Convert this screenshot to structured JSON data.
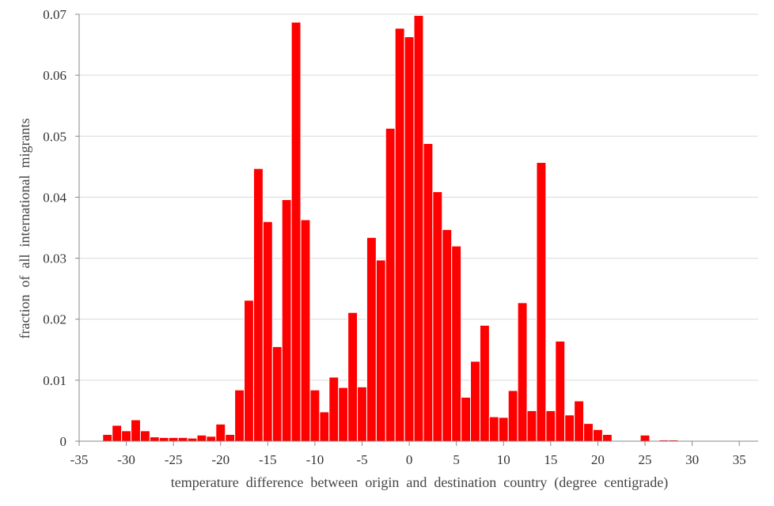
{
  "chart_data": {
    "type": "bar",
    "title": "",
    "xlabel": "temperature  difference  between  origin  and  destination  country  (degree  centigrade)",
    "ylabel": "fraction  of  all  international  migrants",
    "xlim": [
      -35,
      37
    ],
    "ylim": [
      0,
      0.07
    ],
    "bin_width": 1,
    "grid": "horizontal",
    "bar_color": "#ff0000",
    "bar_edge_color": "#ffffff",
    "grid_color": "#d9d9d9",
    "axis_color": "#888888",
    "x_ticks": [
      -35,
      -30,
      -25,
      -20,
      -15,
      -10,
      -5,
      0,
      5,
      10,
      15,
      20,
      25,
      30,
      35
    ],
    "x_tick_labels": [
      "-35",
      "-30",
      "-25",
      "-20",
      "-15",
      "-10",
      "-5",
      "0",
      "5",
      "10",
      "15",
      "20",
      "25",
      "30",
      "35"
    ],
    "y_ticks": [
      0,
      0.01,
      0.02,
      0.03,
      0.04,
      0.05,
      0.06,
      0.07
    ],
    "y_tick_labels": [
      "0",
      "0.01",
      "0.02",
      "0.03",
      "0.04",
      "0.05",
      "0.06",
      "0.07"
    ],
    "bins": [
      {
        "x": -32,
        "value": 0.0011
      },
      {
        "x": -31,
        "value": 0.0026
      },
      {
        "x": -30,
        "value": 0.0017
      },
      {
        "x": -29,
        "value": 0.0035
      },
      {
        "x": -28,
        "value": 0.0017
      },
      {
        "x": -27,
        "value": 0.0007
      },
      {
        "x": -26,
        "value": 0.0006
      },
      {
        "x": -25,
        "value": 0.0006
      },
      {
        "x": -24,
        "value": 0.0006
      },
      {
        "x": -23,
        "value": 0.0005
      },
      {
        "x": -22,
        "value": 0.001
      },
      {
        "x": -21,
        "value": 0.0008
      },
      {
        "x": -20,
        "value": 0.0028
      },
      {
        "x": -19,
        "value": 0.0011
      },
      {
        "x": -18,
        "value": 0.0084
      },
      {
        "x": -17,
        "value": 0.0231
      },
      {
        "x": -16,
        "value": 0.0447
      },
      {
        "x": -15,
        "value": 0.036
      },
      {
        "x": -14,
        "value": 0.0155
      },
      {
        "x": -13,
        "value": 0.0396
      },
      {
        "x": -12,
        "value": 0.0687
      },
      {
        "x": -11,
        "value": 0.0363
      },
      {
        "x": -10,
        "value": 0.0084
      },
      {
        "x": -9,
        "value": 0.0048
      },
      {
        "x": -8,
        "value": 0.0105
      },
      {
        "x": -7,
        "value": 0.0088
      },
      {
        "x": -6,
        "value": 0.0211
      },
      {
        "x": -5,
        "value": 0.0089
      },
      {
        "x": -4,
        "value": 0.0334
      },
      {
        "x": -3,
        "value": 0.0297
      },
      {
        "x": -2,
        "value": 0.0513
      },
      {
        "x": -1,
        "value": 0.0677
      },
      {
        "x": 0,
        "value": 0.0663
      },
      {
        "x": 1,
        "value": 0.0698
      },
      {
        "x": 2,
        "value": 0.0488
      },
      {
        "x": 3,
        "value": 0.0409
      },
      {
        "x": 4,
        "value": 0.0347
      },
      {
        "x": 5,
        "value": 0.032
      },
      {
        "x": 6,
        "value": 0.0072
      },
      {
        "x": 7,
        "value": 0.0131
      },
      {
        "x": 8,
        "value": 0.019
      },
      {
        "x": 9,
        "value": 0.004
      },
      {
        "x": 10,
        "value": 0.0039
      },
      {
        "x": 11,
        "value": 0.0083
      },
      {
        "x": 12,
        "value": 0.0227
      },
      {
        "x": 13,
        "value": 0.005
      },
      {
        "x": 14,
        "value": 0.0457
      },
      {
        "x": 15,
        "value": 0.005
      },
      {
        "x": 16,
        "value": 0.0164
      },
      {
        "x": 17,
        "value": 0.0043
      },
      {
        "x": 18,
        "value": 0.0066
      },
      {
        "x": 19,
        "value": 0.0029
      },
      {
        "x": 20,
        "value": 0.0019
      },
      {
        "x": 21,
        "value": 0.0011
      },
      {
        "x": 25,
        "value": 0.001
      },
      {
        "x": 27,
        "value": 0.0002
      },
      {
        "x": 28,
        "value": 0.0002
      }
    ]
  }
}
